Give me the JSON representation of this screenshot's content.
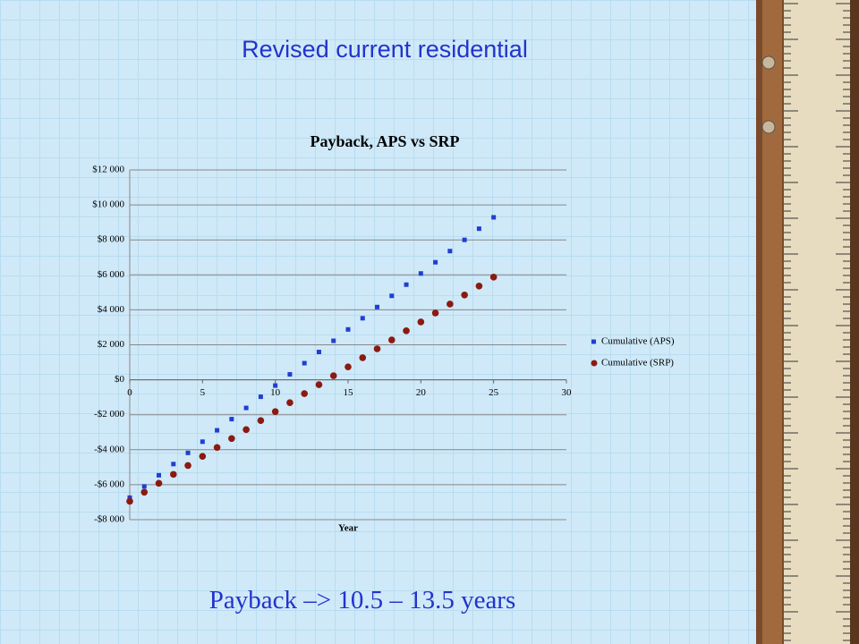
{
  "slide": {
    "title": "Revised current residential",
    "footer": "Payback –> 10.5 – 13.5 years"
  },
  "chart_data": {
    "type": "scatter",
    "title": "Payback, APS vs SRP",
    "x_label": "Year",
    "x": [
      0,
      1,
      2,
      3,
      4,
      5,
      6,
      7,
      8,
      9,
      10,
      11,
      12,
      13,
      14,
      15,
      16,
      17,
      18,
      19,
      20,
      21,
      22,
      23,
      24,
      25
    ],
    "series": [
      {
        "name": "Cumulative (APS)",
        "color": "#1f3fd0",
        "marker": "square",
        "values": [
          -6740,
          -6100,
          -5460,
          -4820,
          -4180,
          -3540,
          -2890,
          -2250,
          -1610,
          -970,
          -330,
          310,
          950,
          1590,
          2230,
          2880,
          3520,
          4160,
          4800,
          5440,
          6080,
          6720,
          7360,
          8000,
          8640,
          9290
        ]
      },
      {
        "name": "Cumulative (SRP)",
        "color": "#8b1a10",
        "marker": "circle",
        "values": [
          -6950,
          -6430,
          -5920,
          -5410,
          -4900,
          -4380,
          -3870,
          -3360,
          -2850,
          -2330,
          -1820,
          -1310,
          -790,
          -280,
          230,
          740,
          1260,
          1770,
          2280,
          2800,
          3310,
          3820,
          4330,
          4850,
          5360,
          5870
        ]
      }
    ],
    "xlim": [
      0,
      30
    ],
    "xticks": [
      0,
      5,
      10,
      15,
      20,
      25,
      30
    ],
    "ylim": [
      -8000,
      12000
    ],
    "yticks": [
      {
        "value": -8000,
        "label": "-$8 000"
      },
      {
        "value": -6000,
        "label": "-$6 000"
      },
      {
        "value": -4000,
        "label": "-$4 000"
      },
      {
        "value": -2000,
        "label": "-$2 000"
      },
      {
        "value": 0,
        "label": "$0"
      },
      {
        "value": 2000,
        "label": "$2 000"
      },
      {
        "value": 4000,
        "label": "$4 000"
      },
      {
        "value": 6000,
        "label": "$6 000"
      },
      {
        "value": 8000,
        "label": "$8 000"
      },
      {
        "value": 10000,
        "label": "$10 000"
      },
      {
        "value": 12000,
        "label": "$12 000"
      }
    ],
    "grid": true,
    "legend": "right"
  }
}
